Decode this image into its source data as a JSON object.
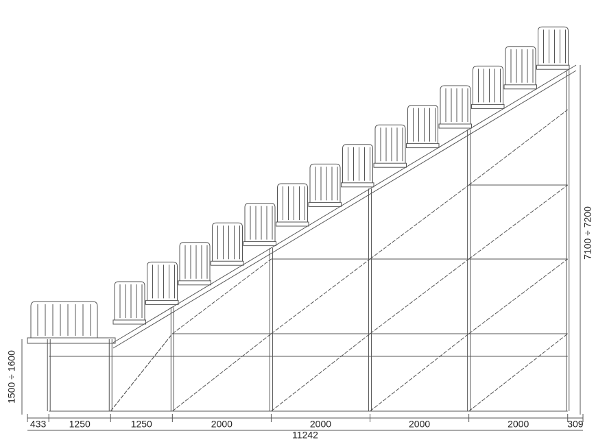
{
  "dimensions": {
    "bottom": [
      433,
      1250,
      1250,
      2000,
      2000,
      2000,
      2000,
      309
    ],
    "total": 11242,
    "left_height": "1500 ÷ 1600",
    "right_height": "7100 ÷ 7200"
  }
}
